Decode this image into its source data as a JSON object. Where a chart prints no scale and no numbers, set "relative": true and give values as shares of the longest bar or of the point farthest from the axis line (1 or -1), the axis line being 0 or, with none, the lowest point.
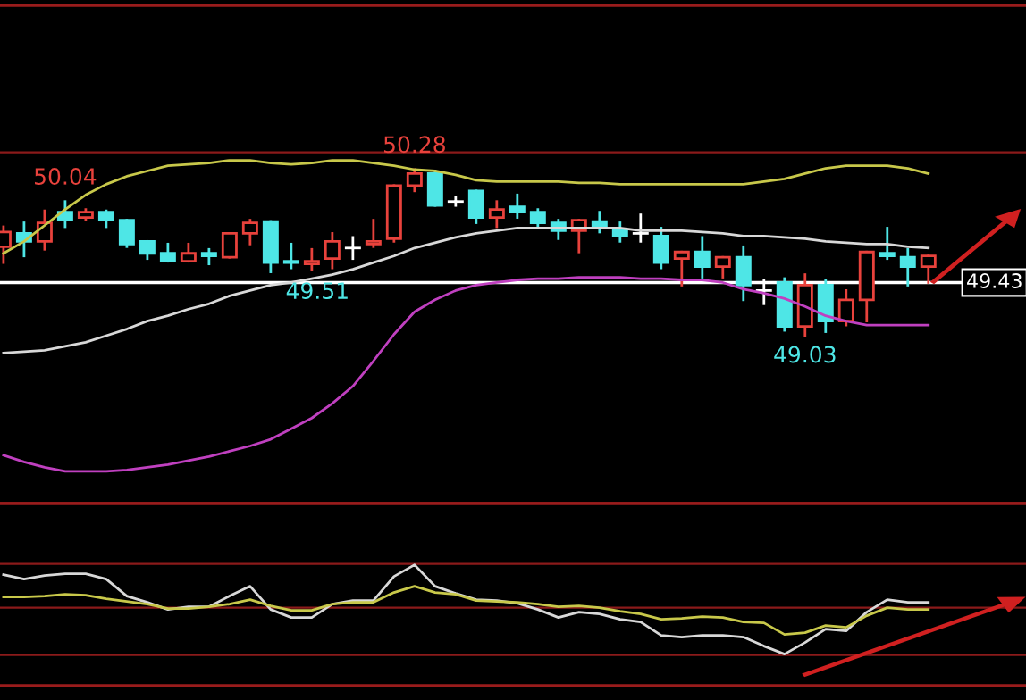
{
  "chart_data": [
    {
      "type": "candlestick",
      "categories": [
        null,
        null,
        null,
        null,
        null,
        null,
        null,
        null,
        null,
        null,
        null,
        null,
        null,
        null,
        null,
        null,
        null,
        null,
        null,
        null,
        null,
        null,
        null,
        null,
        null,
        null,
        null,
        null,
        null,
        null,
        null,
        null,
        null,
        null,
        null,
        null,
        null,
        null,
        null,
        null,
        null,
        null,
        null,
        null,
        null,
        null
      ],
      "ohlc": [
        [
          49.7,
          49.85,
          49.58,
          49.81
        ],
        [
          49.8,
          49.88,
          49.63,
          49.74
        ],
        [
          49.74,
          49.97,
          49.68,
          49.88
        ],
        [
          49.96,
          50.04,
          49.85,
          49.9
        ],
        [
          49.92,
          49.98,
          49.9,
          49.96
        ],
        [
          49.96,
          49.97,
          49.85,
          49.9
        ],
        [
          49.9,
          49.9,
          49.7,
          49.72
        ],
        [
          49.74,
          49.74,
          49.61,
          49.65
        ],
        [
          49.65,
          49.72,
          49.59,
          49.59
        ],
        [
          49.59,
          49.72,
          49.59,
          49.65
        ],
        [
          49.65,
          49.68,
          49.57,
          49.63
        ],
        [
          49.62,
          49.8,
          49.62,
          49.8
        ],
        [
          49.8,
          49.9,
          49.72,
          49.88
        ],
        [
          49.89,
          49.89,
          49.51,
          49.58
        ],
        [
          49.59,
          49.72,
          49.54,
          49.58
        ],
        [
          49.57,
          49.68,
          49.53,
          49.59
        ],
        [
          49.61,
          49.8,
          49.54,
          49.74
        ],
        [
          49.69,
          49.77,
          49.61,
          49.69
        ],
        [
          49.72,
          49.9,
          49.7,
          49.74
        ],
        [
          49.76,
          50.16,
          49.74,
          50.16
        ],
        [
          50.16,
          50.28,
          50.12,
          50.25
        ],
        [
          50.25,
          50.27,
          50.01,
          50.01
        ],
        [
          50.04,
          50.07,
          50.01,
          50.04
        ],
        [
          50.12,
          50.12,
          49.88,
          49.92
        ],
        [
          49.92,
          50.04,
          49.85,
          49.98
        ],
        [
          50.0,
          50.09,
          49.92,
          49.96
        ],
        [
          49.96,
          49.98,
          49.85,
          49.88
        ],
        [
          49.88,
          49.9,
          49.76,
          49.82
        ],
        [
          49.82,
          49.9,
          49.66,
          49.9
        ],
        [
          49.89,
          49.96,
          49.81,
          49.84
        ],
        [
          49.82,
          49.88,
          49.74,
          49.78
        ],
        [
          49.8,
          49.94,
          49.74,
          49.8
        ],
        [
          49.78,
          49.84,
          49.54,
          49.58
        ],
        [
          49.61,
          49.66,
          49.41,
          49.66
        ],
        [
          49.66,
          49.77,
          49.47,
          49.55
        ],
        [
          49.55,
          49.62,
          49.47,
          49.62
        ],
        [
          49.62,
          49.7,
          49.3,
          49.41
        ],
        [
          49.37,
          49.45,
          49.27,
          49.37
        ],
        [
          49.43,
          49.46,
          49.07,
          49.1
        ],
        [
          49.1,
          49.49,
          49.03,
          49.41
        ],
        [
          49.41,
          49.45,
          49.06,
          49.14
        ],
        [
          49.14,
          49.37,
          49.11,
          49.3
        ],
        [
          49.3,
          49.66,
          49.14,
          49.66
        ],
        [
          49.65,
          49.84,
          49.61,
          49.63
        ],
        [
          49.62,
          49.68,
          49.41,
          49.55
        ],
        [
          49.55,
          49.63,
          49.43,
          49.63
        ]
      ],
      "colors": [
        "#e8423c",
        "#4ee6e6",
        "#e8423c",
        "#4ee6e6",
        "#e8423c",
        "#4ee6e6",
        "#4ee6e6",
        "#4ee6e6",
        "#4ee6e6",
        "#e8423c",
        "#4ee6e6",
        "#e8423c",
        "#e8423c",
        "#4ee6e6",
        "#4ee6e6",
        "#e8423c",
        "#e8423c",
        "#ffffff",
        "#e8423c",
        "#e8423c",
        "#e8423c",
        "#4ee6e6",
        "#ffffff",
        "#4ee6e6",
        "#e8423c",
        "#4ee6e6",
        "#4ee6e6",
        "#4ee6e6",
        "#e8423c",
        "#4ee6e6",
        "#4ee6e6",
        "#ffffff",
        "#4ee6e6",
        "#e8423c",
        "#4ee6e6",
        "#e8423c",
        "#4ee6e6",
        "#ffffff",
        "#4ee6e6",
        "#e8423c",
        "#4ee6e6",
        "#e8423c",
        "#e8423c",
        "#4ee6e6",
        "#4ee6e6",
        "#e8423c"
      ],
      "series": [
        {
          "type": "line",
          "color": "#c8c84a",
          "values": [
            49.65,
            49.74,
            49.86,
            49.98,
            50.09,
            50.17,
            50.23,
            50.27,
            50.31,
            50.32,
            50.33,
            50.35,
            50.35,
            50.33,
            50.32,
            50.33,
            50.35,
            50.35,
            50.33,
            50.31,
            50.28,
            50.27,
            50.24,
            50.2,
            50.19,
            50.19,
            50.19,
            50.19,
            50.18,
            50.18,
            50.17,
            50.17,
            50.17,
            50.17,
            50.17,
            50.17,
            50.17,
            50.19,
            50.21,
            50.25,
            50.29,
            50.31,
            50.31,
            50.31,
            50.29,
            50.25
          ]
        },
        {
          "type": "line",
          "color": "#d8d8d8",
          "values": [
            48.9,
            48.91,
            48.92,
            48.95,
            48.98,
            49.03,
            49.08,
            49.14,
            49.18,
            49.23,
            49.27,
            49.33,
            49.37,
            49.41,
            49.43,
            49.46,
            49.49,
            49.53,
            49.58,
            49.63,
            49.69,
            49.73,
            49.77,
            49.8,
            49.82,
            49.84,
            49.84,
            49.84,
            49.84,
            49.84,
            49.84,
            49.82,
            49.82,
            49.82,
            49.81,
            49.8,
            49.78,
            49.78,
            49.77,
            49.76,
            49.74,
            49.73,
            49.72,
            49.72,
            49.7,
            49.69
          ]
        },
        {
          "type": "line",
          "color": "#c040c0",
          "values": [
            48.13,
            48.08,
            48.04,
            48.01,
            48.01,
            48.01,
            48.02,
            48.04,
            48.06,
            48.09,
            48.12,
            48.16,
            48.2,
            48.25,
            48.33,
            48.41,
            48.52,
            48.65,
            48.84,
            49.04,
            49.21,
            49.3,
            49.37,
            49.41,
            49.43,
            49.45,
            49.46,
            49.46,
            49.47,
            49.47,
            49.47,
            49.46,
            49.46,
            49.45,
            49.45,
            49.43,
            49.38,
            49.35,
            49.31,
            49.25,
            49.18,
            49.14,
            49.11,
            49.11,
            49.11,
            49.11
          ]
        }
      ],
      "ref_lines": [
        {
          "axis": "y",
          "value": 49.43,
          "label": "49.43",
          "color": "#ffffff"
        },
        {
          "axis": "y",
          "value": 50.41,
          "color": "#8b1a1a"
        }
      ],
      "annotations": [
        {
          "text": "50.04",
          "y": 50.04
        },
        {
          "text": "50.28",
          "y": 50.28
        },
        {
          "text": "49.51",
          "y": 49.51
        },
        {
          "text": "49.03",
          "y": 49.03
        }
      ]
    },
    {
      "type": "line",
      "relative": true,
      "categories": [
        null,
        null,
        null,
        null,
        null,
        null,
        null,
        null,
        null,
        null,
        null,
        null,
        null,
        null,
        null,
        null,
        null,
        null,
        null,
        null,
        null,
        null,
        null,
        null,
        null,
        null,
        null,
        null,
        null,
        null,
        null,
        null,
        null,
        null,
        null,
        null,
        null,
        null,
        null,
        null,
        null,
        null,
        null,
        null,
        null,
        null
      ],
      "series": [
        {
          "color": "#d8d8d8",
          "values": [
            0.89,
            0.84,
            0.88,
            0.9,
            0.9,
            0.84,
            0.65,
            0.58,
            0.5,
            0.53,
            0.53,
            0.65,
            0.76,
            0.5,
            0.41,
            0.41,
            0.56,
            0.6,
            0.6,
            0.87,
            1.0,
            0.76,
            0.68,
            0.61,
            0.6,
            0.57,
            0.5,
            0.41,
            0.47,
            0.45,
            0.39,
            0.36,
            0.21,
            0.19,
            0.21,
            0.21,
            0.19,
            0.09,
            0,
            0.13,
            0.28,
            0.26,
            0.47,
            0.61,
            0.58,
            0.58
          ]
        },
        {
          "color": "#c8c84a",
          "values": [
            0.64,
            0.64,
            0.65,
            0.67,
            0.66,
            0.62,
            0.59,
            0.56,
            0.51,
            0.51,
            0.53,
            0.56,
            0.61,
            0.54,
            0.49,
            0.49,
            0.56,
            0.58,
            0.58,
            0.69,
            0.76,
            0.69,
            0.67,
            0.6,
            0.59,
            0.58,
            0.56,
            0.53,
            0.54,
            0.52,
            0.48,
            0.45,
            0.39,
            0.4,
            0.42,
            0.41,
            0.36,
            0.35,
            0.22,
            0.24,
            0.32,
            0.3,
            0.43,
            0.52,
            0.5,
            0.5
          ]
        }
      ],
      "ref_lines": [
        {
          "axis": "y",
          "value": 1.01,
          "color": "#8b1a1a"
        },
        {
          "axis": "y",
          "value": 0.52,
          "color": "#8b1a1a"
        },
        {
          "axis": "y",
          "value": -0.01,
          "color": "#8b1a1a"
        }
      ]
    }
  ]
}
